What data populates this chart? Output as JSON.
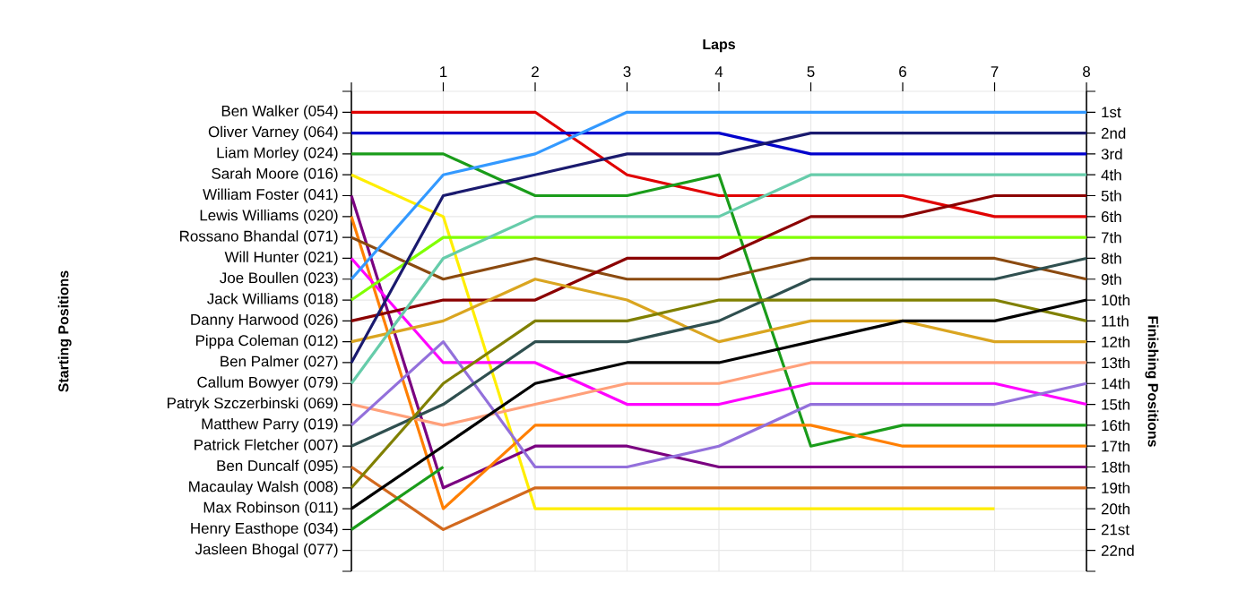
{
  "chart_data": {
    "type": "line",
    "xlabel": "Laps",
    "ylabel": "Finishing Positions",
    "x": [
      0,
      1,
      2,
      3,
      4,
      5,
      6,
      7,
      8
    ],
    "xlim": [
      0,
      8
    ],
    "xticks": [
      {
        "value": 0,
        "label": null
      },
      1,
      2,
      3,
      4,
      5,
      6,
      7,
      8
    ],
    "ylim": [
      23,
      0
    ],
    "yticks": [
      {
        "value": 0,
        "label": null
      },
      {
        "value": 1,
        "label": "1st"
      },
      {
        "value": 2,
        "label": "2nd"
      },
      {
        "value": 3,
        "label": "3rd"
      },
      {
        "value": 4,
        "label": "4th"
      },
      {
        "value": 5,
        "label": "5th"
      },
      {
        "value": 6,
        "label": "6th"
      },
      {
        "value": 7,
        "label": "7th"
      },
      {
        "value": 8,
        "label": "8th"
      },
      {
        "value": 9,
        "label": "9th"
      },
      {
        "value": 10,
        "label": "10th"
      },
      {
        "value": 11,
        "label": "11th"
      },
      {
        "value": 12,
        "label": "12th"
      },
      {
        "value": 13,
        "label": "13th"
      },
      {
        "value": 14,
        "label": "14th"
      },
      {
        "value": 15,
        "label": "15th"
      },
      {
        "value": 16,
        "label": "16th"
      },
      {
        "value": 17,
        "label": "17th"
      },
      {
        "value": 18,
        "label": "18th"
      },
      {
        "value": 19,
        "label": "19th"
      },
      {
        "value": 20,
        "label": "20th"
      },
      {
        "value": 21,
        "label": "21st"
      },
      {
        "value": 22,
        "label": "22nd"
      },
      {
        "value": 23,
        "label": null
      }
    ],
    "annotations": [
      "Starting Positions",
      "Ben Walker (054)",
      "Oliver Varney (064)",
      "Liam Morley (024)",
      "Sarah Moore (016)",
      "William Foster (041)",
      "Lewis Williams (020)",
      "Rossano Bhandal (071)",
      "Will Hunter (021)",
      "Joe Boullen (023)",
      "Jack Williams (018)",
      "Danny Harwood (026)",
      "Pippa Coleman (012)",
      "Ben Palmer (027)",
      "Callum Bowyer (079)",
      "Patryk Szczerbinski (069)",
      "Matthew Parry (019)",
      "Patrick Fletcher (007)",
      "Ben Duncalf (095)",
      "Macaulay Walsh (008)",
      "Max Robinson (011)",
      "Henry Easthope (034)",
      "Jasleen Bhogal (077)"
    ],
    "grid": true,
    "series": [
      {
        "color": "#e00000",
        "values": [
          1,
          1,
          1,
          4,
          5,
          5,
          5,
          6,
          6
        ]
      },
      {
        "color": "#0000cc",
        "values": [
          2,
          2,
          2,
          2,
          2,
          3,
          3,
          3,
          3
        ]
      },
      {
        "color": "#1a9c1a",
        "values": [
          3,
          3,
          5,
          5,
          4,
          17,
          16,
          16,
          16
        ]
      },
      {
        "color": "#ffee00",
        "values": [
          4,
          6,
          20,
          20,
          20,
          20,
          20,
          20,
          null
        ]
      },
      {
        "color": "#7a0080",
        "values": [
          5,
          19,
          17,
          17,
          18,
          18,
          18,
          18,
          18
        ]
      },
      {
        "color": "#ff7f00",
        "values": [
          6,
          20,
          16,
          16,
          16,
          16,
          17,
          17,
          17
        ]
      },
      {
        "color": "#8b4a10",
        "values": [
          7,
          9,
          8,
          9,
          9,
          8,
          8,
          8,
          9
        ]
      },
      {
        "color": "#ff00ff",
        "values": [
          8,
          13,
          13,
          15,
          15,
          14,
          14,
          14,
          15
        ]
      },
      {
        "color": "#3399ff",
        "values": [
          9,
          4,
          3,
          1,
          1,
          1,
          1,
          1,
          1
        ]
      },
      {
        "color": "#80ff00",
        "values": [
          10,
          7,
          7,
          7,
          7,
          7,
          7,
          7,
          7
        ]
      },
      {
        "color": "#8b0000",
        "values": [
          11,
          10,
          10,
          8,
          8,
          6,
          6,
          5,
          5
        ]
      },
      {
        "color": "#daa520",
        "values": [
          12,
          11,
          9,
          10,
          12,
          11,
          11,
          12,
          12
        ]
      },
      {
        "color": "#1a1a6e",
        "values": [
          13,
          5,
          4,
          3,
          3,
          2,
          2,
          2,
          2
        ]
      },
      {
        "color": "#66ccaa",
        "values": [
          14,
          8,
          6,
          6,
          6,
          4,
          4,
          4,
          4
        ]
      },
      {
        "color": "#ffa07a",
        "values": [
          15,
          16,
          15,
          14,
          14,
          13,
          13,
          13,
          13
        ]
      },
      {
        "color": "#9370db",
        "values": [
          16,
          12,
          18,
          18,
          17,
          15,
          15,
          15,
          14
        ]
      },
      {
        "color": "#2f4f4f",
        "values": [
          17,
          15,
          12,
          12,
          11,
          9,
          9,
          9,
          8
        ]
      },
      {
        "color": "#d2691e",
        "values": [
          18,
          21,
          19,
          19,
          19,
          19,
          19,
          19,
          19
        ]
      },
      {
        "color": "#808000",
        "values": [
          19,
          14,
          11,
          11,
          10,
          10,
          10,
          10,
          11
        ]
      },
      {
        "color": "#000000",
        "values": [
          20,
          17,
          14,
          13,
          13,
          12,
          11,
          11,
          10
        ]
      },
      {
        "color": "#1a9c1a",
        "values": [
          21,
          18,
          null,
          null,
          null,
          null,
          null,
          null,
          null
        ]
      }
    ]
  }
}
